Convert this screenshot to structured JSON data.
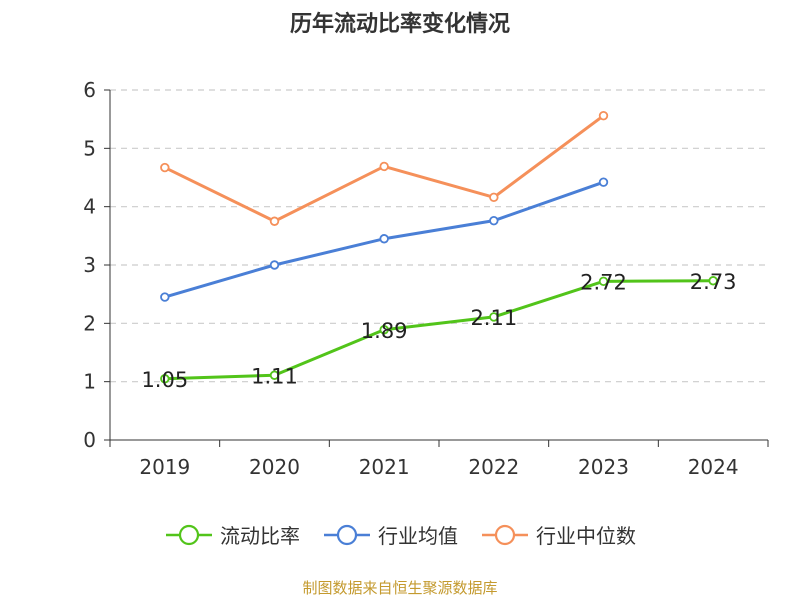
{
  "chart_data": {
    "type": "line",
    "title": "历年流动比率变化情况",
    "categories": [
      "2019",
      "2020",
      "2021",
      "2022",
      "2023",
      "2024"
    ],
    "ylim": [
      0,
      6
    ],
    "yticks": [
      "0",
      "1",
      "2",
      "3",
      "4",
      "5",
      "6"
    ],
    "grid": true,
    "legend_position": "bottom",
    "series": [
      {
        "name": "流动比率",
        "color": "#52c41a",
        "values": [
          1.05,
          1.11,
          1.89,
          2.11,
          2.72,
          2.73
        ],
        "labels": [
          "1.05",
          "1.11",
          "1.89",
          "2.11",
          "2.72",
          "2.73"
        ]
      },
      {
        "name": "行业均值",
        "color": "#4a7fd6",
        "values": [
          2.45,
          3.0,
          3.45,
          3.76,
          4.42,
          null
        ]
      },
      {
        "name": "行业中位数",
        "color": "#f5905a",
        "values": [
          4.67,
          3.75,
          4.69,
          4.16,
          5.56,
          null
        ]
      }
    ]
  },
  "source": "制图数据来自恒生聚源数据库"
}
